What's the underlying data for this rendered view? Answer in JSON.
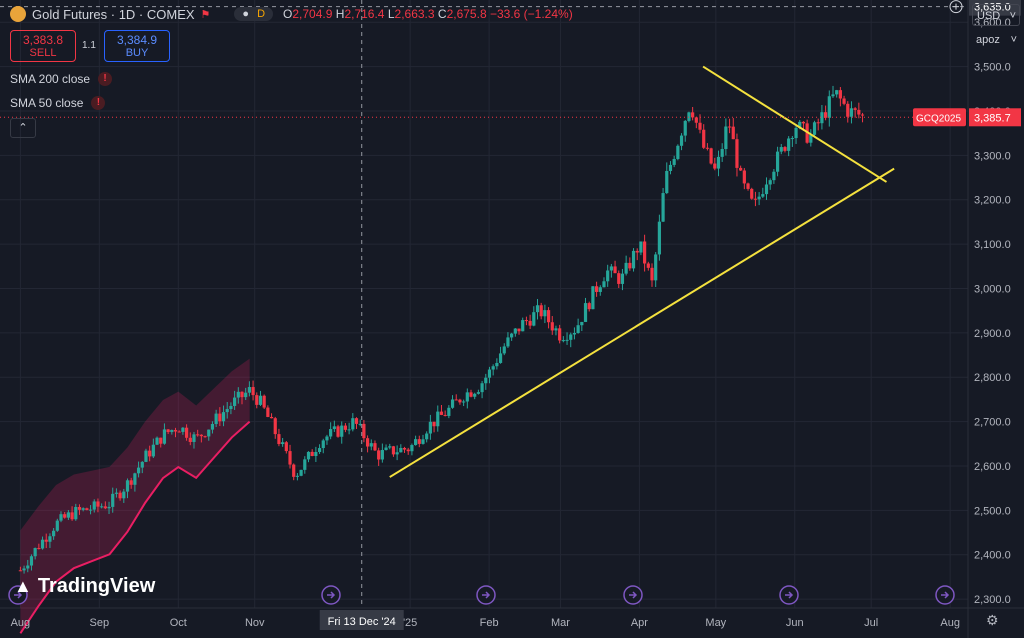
{
  "header": {
    "title": "Gold Futures · 1D · COMEX",
    "mode": "D",
    "ohlc": {
      "o_label": "O",
      "o": "2,704.9",
      "h_label": "H",
      "h": "2,716.4",
      "l_label": "L",
      "l": "2,663.3",
      "c_label": "C",
      "c": "2,675.8",
      "change": "−33.6 (−1.24%)"
    }
  },
  "trade": {
    "sell_price": "3,383.8",
    "sell_label": "SELL",
    "spread": "1.1",
    "buy_price": "3,384.9",
    "buy_label": "BUY"
  },
  "indicators": [
    {
      "label": "SMA 200 close"
    },
    {
      "label": "SMA 50 close"
    }
  ],
  "toolbar": {
    "currency": "USD",
    "unit": "apoz"
  },
  "brand": {
    "name": "TradingView"
  },
  "colors": {
    "up": "#26a69a",
    "down": "#f23645",
    "trend": "#f4e13e",
    "channel": "#e91e63"
  },
  "chart_data": {
    "type": "candlestick",
    "symbol_tag": "GCQ2025",
    "last_price": "3,385.7",
    "crosshair_price": "3,635.0",
    "crosshair_date": "Fri 13 Dec '24",
    "ylim": [
      2280,
      3650
    ],
    "y_ticks": [
      "3,600.0",
      "3,500.0",
      "3,400.0",
      "3,300.0",
      "3,200.0",
      "3,100.0",
      "3,000.0",
      "2,900.0",
      "2,800.0",
      "2,700.0",
      "2,600.0",
      "2,500.0",
      "2,400.0",
      "2,300.0"
    ],
    "y_tick_values": [
      3600,
      3500,
      3400,
      3300,
      3200,
      3100,
      3000,
      2900,
      2800,
      2700,
      2600,
      2500,
      2400,
      2300
    ],
    "x_ticks": [
      "Aug",
      "Sep",
      "Oct",
      "Nov",
      "'25",
      "Feb",
      "Mar",
      "Apr",
      "May",
      "Jun",
      "Jul",
      "Aug"
    ],
    "x_tick_days": [
      0,
      31,
      62,
      92,
      153,
      184,
      212,
      243,
      273,
      304,
      334,
      365
    ],
    "crosshair_day": 134,
    "last_day": 332,
    "closes": [
      {
        "d": 0,
        "c": 2365
      },
      {
        "d": 7,
        "c": 2420
      },
      {
        "d": 14,
        "c": 2470
      },
      {
        "d": 21,
        "c": 2495
      },
      {
        "d": 28,
        "c": 2505
      },
      {
        "d": 35,
        "c": 2515
      },
      {
        "d": 42,
        "c": 2560
      },
      {
        "d": 49,
        "c": 2620
      },
      {
        "d": 56,
        "c": 2670
      },
      {
        "d": 62,
        "c": 2690
      },
      {
        "d": 69,
        "c": 2660
      },
      {
        "d": 76,
        "c": 2700
      },
      {
        "d": 83,
        "c": 2740
      },
      {
        "d": 90,
        "c": 2770
      },
      {
        "d": 94,
        "c": 2745
      },
      {
        "d": 98,
        "c": 2700
      },
      {
        "d": 103,
        "c": 2640
      },
      {
        "d": 108,
        "c": 2580
      },
      {
        "d": 112,
        "c": 2610
      },
      {
        "d": 118,
        "c": 2660
      },
      {
        "d": 125,
        "c": 2680
      },
      {
        "d": 131,
        "c": 2700
      },
      {
        "d": 134,
        "c": 2675
      },
      {
        "d": 140,
        "c": 2625
      },
      {
        "d": 147,
        "c": 2635
      },
      {
        "d": 153,
        "c": 2640
      },
      {
        "d": 160,
        "c": 2690
      },
      {
        "d": 167,
        "c": 2720
      },
      {
        "d": 174,
        "c": 2760
      },
      {
        "d": 180,
        "c": 2780
      },
      {
        "d": 184,
        "c": 2810
      },
      {
        "d": 190,
        "c": 2870
      },
      {
        "d": 197,
        "c": 2920
      },
      {
        "d": 204,
        "c": 2950
      },
      {
        "d": 212,
        "c": 2895
      },
      {
        "d": 218,
        "c": 2910
      },
      {
        "d": 225,
        "c": 2990
      },
      {
        "d": 230,
        "c": 3040
      },
      {
        "d": 236,
        "c": 3020
      },
      {
        "d": 243,
        "c": 3100
      },
      {
        "d": 248,
        "c": 3010
      },
      {
        "d": 253,
        "c": 3240
      },
      {
        "d": 258,
        "c": 3330
      },
      {
        "d": 263,
        "c": 3420
      },
      {
        "d": 268,
        "c": 3320
      },
      {
        "d": 273,
        "c": 3260
      },
      {
        "d": 278,
        "c": 3380
      },
      {
        "d": 283,
        "c": 3240
      },
      {
        "d": 288,
        "c": 3180
      },
      {
        "d": 293,
        "c": 3250
      },
      {
        "d": 298,
        "c": 3300
      },
      {
        "d": 304,
        "c": 3370
      },
      {
        "d": 310,
        "c": 3340
      },
      {
        "d": 315,
        "c": 3390
      },
      {
        "d": 320,
        "c": 3440
      },
      {
        "d": 325,
        "c": 3400
      },
      {
        "d": 332,
        "c": 3386
      }
    ],
    "trendlines": [
      {
        "name": "support",
        "from": {
          "d": 145,
          "p": 2575
        },
        "to": {
          "d": 343,
          "p": 3270
        }
      },
      {
        "name": "resistance",
        "from": {
          "d": 268,
          "p": 3500
        },
        "to": {
          "d": 340,
          "p": 3240
        }
      }
    ]
  }
}
